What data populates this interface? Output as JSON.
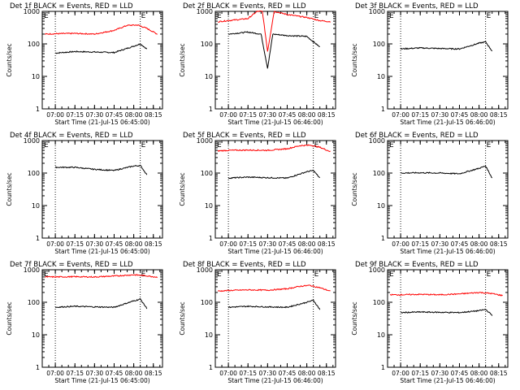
{
  "layout": "3x3",
  "chart_data": [
    {
      "type": "line",
      "title": "Det 1f BLACK = Events, RED = LLD",
      "xlabel": "Start Time (21-Jul-15 06:45:00)",
      "ylabel": "Counts/sec",
      "yscale": "log",
      "ylim": [
        1,
        1000
      ],
      "yticks": [
        "1",
        "10",
        "100",
        "1000"
      ],
      "xticks": [
        "07:00",
        "07:15",
        "07:30",
        "07:45",
        "08:00",
        "08:15"
      ],
      "marker_label": "E",
      "vlines": [
        "07:00",
        "08:05"
      ],
      "x_start": "06:52",
      "x_end": "08:15",
      "series": [
        {
          "color": "#000000",
          "x": [
            "07:00",
            "07:15",
            "07:30",
            "07:45",
            "08:00",
            "08:05",
            "08:10"
          ],
          "values": [
            52,
            58,
            56,
            54,
            85,
            100,
            70
          ]
        },
        {
          "color": "#ff0000",
          "x": [
            "06:52",
            "07:00",
            "07:15",
            "07:30",
            "07:45",
            "07:55",
            "08:03",
            "08:10",
            "08:18"
          ],
          "values": [
            200,
            205,
            210,
            200,
            260,
            370,
            380,
            300,
            200
          ]
        }
      ]
    },
    {
      "type": "line",
      "title": "Det 2f BLACK = Events, RED = LLD",
      "xlabel": "Start Time (21-Jul-15 06:46:00)",
      "ylabel": "Counts/sec",
      "yscale": "log",
      "ylim": [
        1,
        1000
      ],
      "yticks": [
        "1",
        "10",
        "100",
        "1000"
      ],
      "xticks": [
        "07:00",
        "07:15",
        "07:30",
        "07:45",
        "08:00",
        "08:15"
      ],
      "marker_label": "E",
      "vlines": [
        "07:00",
        "08:05"
      ],
      "x_start": "06:52",
      "x_end": "08:15",
      "series": [
        {
          "color": "#000000",
          "x": [
            "07:00",
            "07:15",
            "07:25",
            "07:30",
            "07:34",
            "07:45",
            "08:00",
            "08:10"
          ],
          "values": [
            200,
            230,
            200,
            18,
            200,
            180,
            170,
            80
          ]
        },
        {
          "color": "#ff0000",
          "x": [
            "06:52",
            "07:00",
            "07:15",
            "07:22",
            "07:26",
            "07:30",
            "07:35",
            "07:45",
            "08:00",
            "08:10",
            "08:18"
          ],
          "values": [
            480,
            520,
            600,
            1000,
            1000,
            60,
            1000,
            800,
            650,
            520,
            480
          ]
        }
      ]
    },
    {
      "type": "line",
      "title": "Det 3f BLACK = Events, RED = LLD",
      "xlabel": "Start Time (21-Jul-15 06:46:00)",
      "ylabel": "Counts/sec",
      "yscale": "log",
      "ylim": [
        1,
        1000
      ],
      "yticks": [
        "1",
        "10",
        "100",
        "1000"
      ],
      "xticks": [
        "07:00",
        "07:15",
        "07:30",
        "07:45",
        "08:00",
        "08:15"
      ],
      "marker_label": "E",
      "vlines": [
        "07:00",
        "08:05"
      ],
      "x_start": "06:52",
      "x_end": "08:15",
      "series": [
        {
          "color": "#000000",
          "x": [
            "07:00",
            "07:15",
            "07:30",
            "07:45",
            "08:00",
            "08:05",
            "08:10"
          ],
          "values": [
            70,
            75,
            72,
            70,
            105,
            115,
            60
          ]
        }
      ]
    },
    {
      "type": "line",
      "title": "Det 4f BLACK = Events, RED = LLD",
      "xlabel": "Start Time (21-Jul-15 06:45:00)",
      "ylabel": "Counts/sec",
      "yscale": "log",
      "ylim": [
        1,
        1000
      ],
      "yticks": [
        "1",
        "10",
        "100",
        "1000"
      ],
      "xticks": [
        "07:00",
        "07:15",
        "07:30",
        "07:45",
        "08:00",
        "08:15"
      ],
      "marker_label": "E",
      "vlines": [
        "07:00",
        "08:05"
      ],
      "x_start": "06:52",
      "x_end": "08:15",
      "series": [
        {
          "color": "#000000",
          "x": [
            "07:00",
            "07:15",
            "07:30",
            "07:45",
            "08:00",
            "08:05",
            "08:10"
          ],
          "values": [
            150,
            150,
            130,
            120,
            165,
            170,
            90
          ]
        }
      ]
    },
    {
      "type": "line",
      "title": "Det 5f BLACK = Events, RED = LLD",
      "xlabel": "Start Time (21-Jul-15 06:46:00)",
      "ylabel": "Counts/sec",
      "yscale": "log",
      "ylim": [
        1,
        1000
      ],
      "yticks": [
        "1",
        "10",
        "100",
        "1000"
      ],
      "xticks": [
        "07:00",
        "07:15",
        "07:30",
        "07:45",
        "08:00",
        "08:15"
      ],
      "marker_label": "E",
      "vlines": [
        "07:00",
        "08:05"
      ],
      "x_start": "06:52",
      "x_end": "08:15",
      "series": [
        {
          "color": "#000000",
          "x": [
            "07:00",
            "07:15",
            "07:30",
            "07:45",
            "08:00",
            "08:05",
            "08:10"
          ],
          "values": [
            70,
            75,
            72,
            70,
            110,
            120,
            70
          ]
        },
        {
          "color": "#ff0000",
          "x": [
            "06:52",
            "07:00",
            "07:15",
            "07:30",
            "07:45",
            "07:55",
            "08:03",
            "08:10",
            "08:18"
          ],
          "values": [
            480,
            500,
            510,
            500,
            560,
            700,
            720,
            620,
            460
          ]
        }
      ]
    },
    {
      "type": "line",
      "title": "Det 6f BLACK = Events, RED = LLD",
      "xlabel": "Start Time (21-Jul-15 06:46:00)",
      "ylabel": "Counts/sec",
      "yscale": "log",
      "ylim": [
        1,
        1000
      ],
      "yticks": [
        "1",
        "10",
        "100",
        "1000"
      ],
      "xticks": [
        "07:00",
        "07:15",
        "07:30",
        "07:45",
        "08:00",
        "08:15"
      ],
      "marker_label": "E",
      "vlines": [
        "07:00",
        "08:05"
      ],
      "x_start": "06:52",
      "x_end": "08:15",
      "series": [
        {
          "color": "#000000",
          "x": [
            "07:00",
            "07:15",
            "07:30",
            "07:45",
            "08:00",
            "08:05",
            "08:10"
          ],
          "values": [
            100,
            102,
            100,
            95,
            140,
            165,
            70
          ]
        }
      ]
    },
    {
      "type": "line",
      "title": "Det 7f BLACK = Events, RED = LLD",
      "xlabel": "Start Time (21-Jul-15 06:45:00)",
      "ylabel": "Counts/sec",
      "yscale": "log",
      "ylim": [
        1,
        1000
      ],
      "yticks": [
        "1",
        "10",
        "100",
        "1000"
      ],
      "xticks": [
        "07:00",
        "07:15",
        "07:30",
        "07:45",
        "08:00",
        "08:15"
      ],
      "marker_label": "E",
      "vlines": [
        "07:00",
        "08:05"
      ],
      "x_start": "06:52",
      "x_end": "08:15",
      "series": [
        {
          "color": "#000000",
          "x": [
            "07:00",
            "07:15",
            "07:30",
            "07:45",
            "08:00",
            "08:05",
            "08:10"
          ],
          "values": [
            70,
            75,
            72,
            70,
            110,
            125,
            65
          ]
        },
        {
          "color": "#ff0000",
          "x": [
            "06:52",
            "07:00",
            "07:15",
            "07:30",
            "07:45",
            "08:00",
            "08:10",
            "08:18"
          ],
          "values": [
            600,
            600,
            610,
            600,
            640,
            700,
            650,
            590
          ]
        }
      ]
    },
    {
      "type": "line",
      "title": "Det 8f BLACK = Events, RED = LLD",
      "xlabel": "Start Time (21-Jul-15 06:46:00)",
      "ylabel": "Counts/sec",
      "yscale": "log",
      "ylim": [
        1,
        1000
      ],
      "yticks": [
        "1",
        "10",
        "100",
        "1000"
      ],
      "xticks": [
        "07:00",
        "07:15",
        "07:30",
        "07:45",
        "08:00",
        "08:15"
      ],
      "marker_label": "E",
      "vlines": [
        "07:00",
        "08:05"
      ],
      "x_start": "06:52",
      "x_end": "08:15",
      "series": [
        {
          "color": "#000000",
          "x": [
            "07:00",
            "07:15",
            "07:30",
            "07:45",
            "08:00",
            "08:05",
            "08:10"
          ],
          "values": [
            70,
            75,
            72,
            70,
            100,
            115,
            60
          ]
        },
        {
          "color": "#ff0000",
          "x": [
            "06:52",
            "07:00",
            "07:15",
            "07:30",
            "07:45",
            "07:55",
            "08:02",
            "08:10",
            "08:18"
          ],
          "values": [
            220,
            230,
            240,
            235,
            260,
            310,
            330,
            280,
            220
          ]
        }
      ]
    },
    {
      "type": "line",
      "title": "Det 9f BLACK = Events, RED = LLD",
      "xlabel": "Start Time (21-Jul-15 06:46:00)",
      "ylabel": "Counts/sec",
      "yscale": "log",
      "ylim": [
        1,
        1000
      ],
      "yticks": [
        "1",
        "10",
        "100",
        "1000"
      ],
      "xticks": [
        "07:00",
        "07:15",
        "07:30",
        "07:45",
        "08:00",
        "08:15"
      ],
      "marker_label": "E",
      "vlines": [
        "07:00",
        "08:05"
      ],
      "x_start": "06:52",
      "x_end": "08:15",
      "series": [
        {
          "color": "#000000",
          "x": [
            "07:00",
            "07:15",
            "07:30",
            "07:45",
            "08:00",
            "08:05",
            "08:10"
          ],
          "values": [
            48,
            50,
            49,
            48,
            55,
            60,
            40
          ]
        },
        {
          "color": "#ff0000",
          "x": [
            "06:52",
            "07:00",
            "07:15",
            "07:30",
            "07:45",
            "08:00",
            "08:10",
            "08:18"
          ],
          "values": [
            170,
            170,
            175,
            170,
            180,
            200,
            185,
            160
          ]
        }
      ]
    }
  ]
}
